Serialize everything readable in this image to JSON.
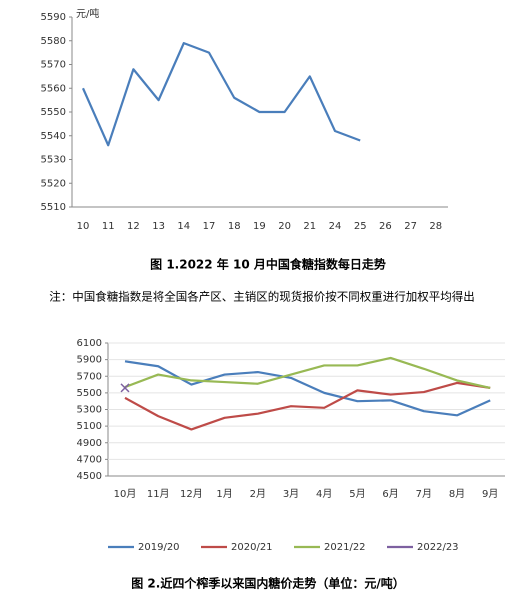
{
  "chart_data": [
    {
      "type": "line",
      "y_label": "元/吨",
      "categories": [
        "10",
        "11",
        "12",
        "13",
        "14",
        "17",
        "18",
        "19",
        "20",
        "21",
        "24",
        "25",
        "26",
        "27",
        "28"
      ],
      "values": [
        5560,
        5536,
        5568,
        5555,
        5579,
        5575,
        5556,
        5550,
        5550,
        5565,
        5542,
        5538,
        null,
        null,
        null
      ],
      "color": "#4a7ebb",
      "ylim": [
        5510,
        5590
      ],
      "yticks": [
        5510,
        5520,
        5530,
        5540,
        5550,
        5560,
        5570,
        5580,
        5590
      ],
      "grid": false
    },
    {
      "type": "line",
      "categories": [
        "10月",
        "11月",
        "12月",
        "1月",
        "2月",
        "3月",
        "4月",
        "5月",
        "6月",
        "7月",
        "8月",
        "9月"
      ],
      "series": [
        {
          "name": "2019/20",
          "color": "#4a7ebb",
          "values": [
            5880,
            5820,
            5600,
            5720,
            5750,
            5680,
            5500,
            5400,
            5410,
            5280,
            5230,
            5410
          ]
        },
        {
          "name": "2020/21",
          "color": "#be4b48",
          "values": [
            5440,
            5220,
            5060,
            5200,
            5250,
            5340,
            5320,
            5530,
            5480,
            5510,
            5620,
            5560
          ]
        },
        {
          "name": "2021/22",
          "color": "#98b954",
          "values": [
            5570,
            5720,
            5650,
            5630,
            5610,
            5720,
            5830,
            5830,
            5920,
            5790,
            5650,
            5560
          ]
        },
        {
          "name": "2022/23",
          "color": "#7d60a0",
          "values": [
            5560,
            null,
            null,
            null,
            null,
            null,
            null,
            null,
            null,
            null,
            null,
            null
          ]
        }
      ],
      "ylim": [
        4500,
        6100
      ],
      "yticks": [
        4500,
        4700,
        4900,
        5100,
        5300,
        5500,
        5700,
        5900,
        6100
      ],
      "grid": true,
      "legend": "bottom"
    }
  ],
  "caption1": "图 1.2022 年 10 月中国食糖指数每日走势",
  "note": "注：中国食糖指数是将全国各产区、主销区的现货报价按不同权重进行加权平均得出",
  "caption2": "图 2.近四个榨季以来国内糖价走势（单位：元/吨）"
}
